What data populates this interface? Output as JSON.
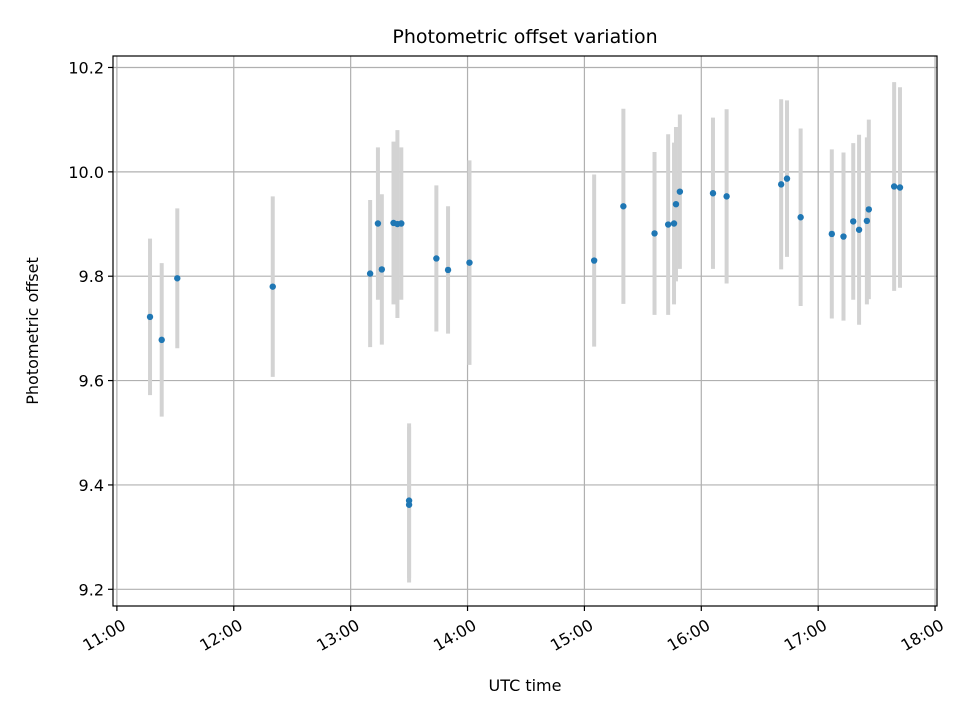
{
  "chart_data": {
    "type": "scatter",
    "title": "Photometric offset variation",
    "xlabel": "UTC time",
    "ylabel": "Photometric offset",
    "x_ticks": [
      "11:00",
      "12:00",
      "13:00",
      "14:00",
      "15:00",
      "16:00",
      "17:00",
      "18:00"
    ],
    "y_ticks": [
      "9.2",
      "9.4",
      "9.6",
      "9.8",
      "10.0",
      "10.2"
    ],
    "xlim": [
      "10:58",
      "18:01"
    ],
    "ylim": [
      9.168,
      10.222
    ],
    "grid": true,
    "colors": {
      "point": "#1f77b4",
      "errorbar": "#d3d3d3",
      "grid": "#b0b0b0"
    },
    "points": [
      {
        "x": "11:17",
        "y": 9.722,
        "err": 0.15
      },
      {
        "x": "11:23",
        "y": 9.678,
        "err": 0.147
      },
      {
        "x": "11:31",
        "y": 9.796,
        "err": 0.134
      },
      {
        "x": "12:20",
        "y": 9.78,
        "err": 0.173
      },
      {
        "x": "13:10",
        "y": 9.805,
        "err": 0.141
      },
      {
        "x": "13:14",
        "y": 9.901,
        "err": 0.146
      },
      {
        "x": "13:16",
        "y": 9.813,
        "err": 0.144
      },
      {
        "x": "13:22",
        "y": 9.902,
        "err": 0.156
      },
      {
        "x": "13:24",
        "y": 9.9,
        "err": 0.18
      },
      {
        "x": "13:26",
        "y": 9.901,
        "err": 0.146
      },
      {
        "x": "13:30",
        "y": 9.37,
        "err": 0.148
      },
      {
        "x": "13:30",
        "y": 9.362,
        "err": 0.149
      },
      {
        "x": "13:44",
        "y": 9.834,
        "err": 0.14
      },
      {
        "x": "13:50",
        "y": 9.812,
        "err": 0.122
      },
      {
        "x": "14:01",
        "y": 9.826,
        "err": 0.196
      },
      {
        "x": "15:05",
        "y": 9.83,
        "err": 0.165
      },
      {
        "x": "15:20",
        "y": 9.934,
        "err": 0.187
      },
      {
        "x": "15:36",
        "y": 9.882,
        "err": 0.156
      },
      {
        "x": "15:43",
        "y": 9.899,
        "err": 0.173
      },
      {
        "x": "15:46",
        "y": 9.901,
        "err": 0.155
      },
      {
        "x": "15:47",
        "y": 9.938,
        "err": 0.148
      },
      {
        "x": "15:49",
        "y": 9.962,
        "err": 0.148
      },
      {
        "x": "16:06",
        "y": 9.959,
        "err": 0.145
      },
      {
        "x": "16:13",
        "y": 9.953,
        "err": 0.167
      },
      {
        "x": "16:41",
        "y": 9.976,
        "err": 0.163
      },
      {
        "x": "16:44",
        "y": 9.987,
        "err": 0.15
      },
      {
        "x": "16:51",
        "y": 9.913,
        "err": 0.17
      },
      {
        "x": "17:07",
        "y": 9.881,
        "err": 0.162
      },
      {
        "x": "17:13",
        "y": 9.876,
        "err": 0.161
      },
      {
        "x": "17:18",
        "y": 9.905,
        "err": 0.15
      },
      {
        "x": "17:21",
        "y": 9.889,
        "err": 0.182
      },
      {
        "x": "17:25",
        "y": 9.906,
        "err": 0.16
      },
      {
        "x": "17:26",
        "y": 9.928,
        "err": 0.172
      },
      {
        "x": "17:39",
        "y": 9.972,
        "err": 0.2
      },
      {
        "x": "17:42",
        "y": 9.97,
        "err": 0.192
      }
    ]
  }
}
